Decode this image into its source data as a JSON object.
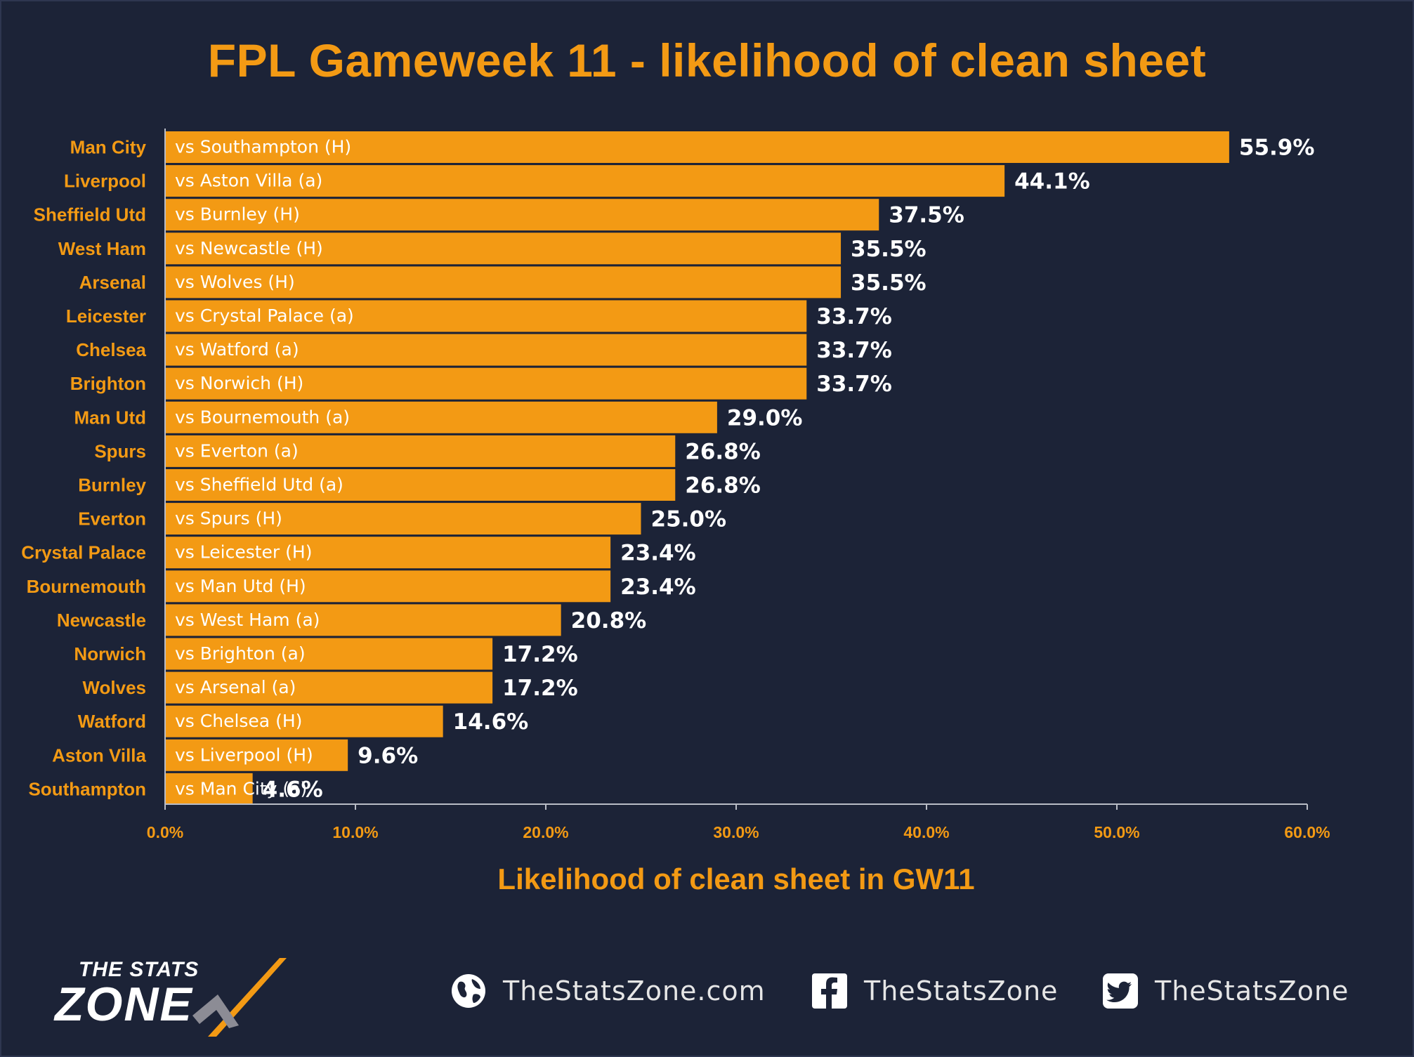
{
  "title": "FPL Gameweek 11 - likelihood of clean sheet",
  "chart_data": {
    "type": "bar",
    "orientation": "horizontal",
    "categories": [
      "Man City",
      "Liverpool",
      "Sheffield Utd",
      "West Ham",
      "Arsenal",
      "Leicester",
      "Chelsea",
      "Brighton",
      "Man Utd",
      "Spurs",
      "Burnley",
      "Everton",
      "Crystal Palace",
      "Bournemouth",
      "Newcastle",
      "Norwich",
      "Wolves",
      "Watford",
      "Aston Villa",
      "Southampton"
    ],
    "opponents": [
      "vs Southampton (H)",
      "vs Aston Villa (a)",
      "vs Burnley (H)",
      "vs Newcastle (H)",
      "vs Wolves (H)",
      "vs Crystal Palace (a)",
      "vs Watford (a)",
      "vs Norwich (H)",
      "vs Bournemouth (a)",
      "vs Everton (a)",
      "vs Sheffield Utd (a)",
      "vs Spurs (H)",
      "vs Leicester (H)",
      "vs Man Utd (H)",
      "vs West Ham (a)",
      "vs Brighton (a)",
      "vs Arsenal (a)",
      "vs Chelsea (H)",
      "vs Liverpool (H)",
      "vs Man City (a)"
    ],
    "values": [
      55.9,
      44.1,
      37.5,
      35.5,
      35.5,
      33.7,
      33.7,
      33.7,
      29.0,
      26.8,
      26.8,
      25.0,
      23.4,
      23.4,
      20.8,
      17.2,
      17.2,
      14.6,
      9.6,
      4.6
    ],
    "value_labels": [
      "55.9%",
      "44.1%",
      "37.5%",
      "35.5%",
      "35.5%",
      "33.7%",
      "33.7%",
      "33.7%",
      "29.0%",
      "26.8%",
      "26.8%",
      "25.0%",
      "23.4%",
      "23.4%",
      "20.8%",
      "17.2%",
      "17.2%",
      "14.6%",
      "9.6%",
      "4.6%"
    ],
    "xlim": [
      0,
      60
    ],
    "xticks": [
      "0.0%",
      "10.0%",
      "20.0%",
      "30.0%",
      "40.0%",
      "50.0%",
      "60.0%"
    ],
    "xlabel": "Likelihood of clean sheet in GW11",
    "bar_color": "#f39a14",
    "grid": false
  },
  "footer": {
    "logo_top": "THE STATS",
    "logo_bottom": "ZONE",
    "website": "TheStatsZone.com",
    "facebook": "TheStatsZone",
    "twitter": "TheStatsZone"
  },
  "colors": {
    "background": "#1c2337",
    "accent": "#f39a14",
    "text": "#ffffff"
  }
}
